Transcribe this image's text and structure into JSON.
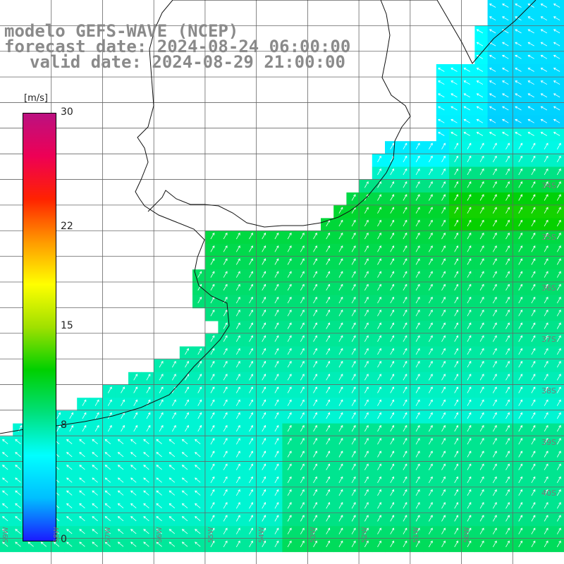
{
  "title": {
    "line1": "modelo GEFS-WAVE (NCEP)",
    "line2": "forecast date: 2024-08-24 06:00:00",
    "line3": "valid date: 2024-08-29 21:00:00"
  },
  "colorbar": {
    "unit": "[m/s]",
    "ticks": [
      {
        "label": "30",
        "value": 30
      },
      {
        "label": "22",
        "value": 22
      },
      {
        "label": "15",
        "value": 15
      },
      {
        "label": "8",
        "value": 8
      },
      {
        "label": "0",
        "value": 0
      }
    ],
    "range": [
      0,
      30
    ],
    "colors": [
      "#1a1aff",
      "#00bfff",
      "#00ffff",
      "#00e07a",
      "#00d000",
      "#a0e000",
      "#ffff00",
      "#ff9900",
      "#ff2200",
      "#ee0055",
      "#bb1180"
    ]
  },
  "lat_labels": [
    "34S",
    "35S",
    "36S",
    "37S",
    "38S",
    "39S",
    "40S"
  ],
  "lon_labels": [
    "59W",
    "58W",
    "57W",
    "56W",
    "55W",
    "54W",
    "53W",
    "52W",
    "51W",
    "50W"
  ],
  "map_data": {
    "variable": "wind speed and direction",
    "lat_range": [
      -41,
      -30
    ],
    "lon_range": [
      -60,
      -49
    ],
    "speed_by_lat": [
      {
        "lat": -31,
        "speed_ms": 6
      },
      {
        "lat": -33,
        "speed_ms": 5
      },
      {
        "lat": -34,
        "speed_ms": 11
      },
      {
        "lat": -35,
        "speed_ms": 10
      },
      {
        "lat": -36,
        "speed_ms": 9
      },
      {
        "lat": -37,
        "speed_ms": 8
      },
      {
        "lat": -38,
        "speed_ms": 7
      },
      {
        "lat": -39,
        "speed_ms": 7
      },
      {
        "lat": -40,
        "speed_ms": 7
      },
      {
        "lat": -41,
        "speed_ms": 9
      }
    ],
    "wind_direction": "from southwest toward northeast"
  }
}
